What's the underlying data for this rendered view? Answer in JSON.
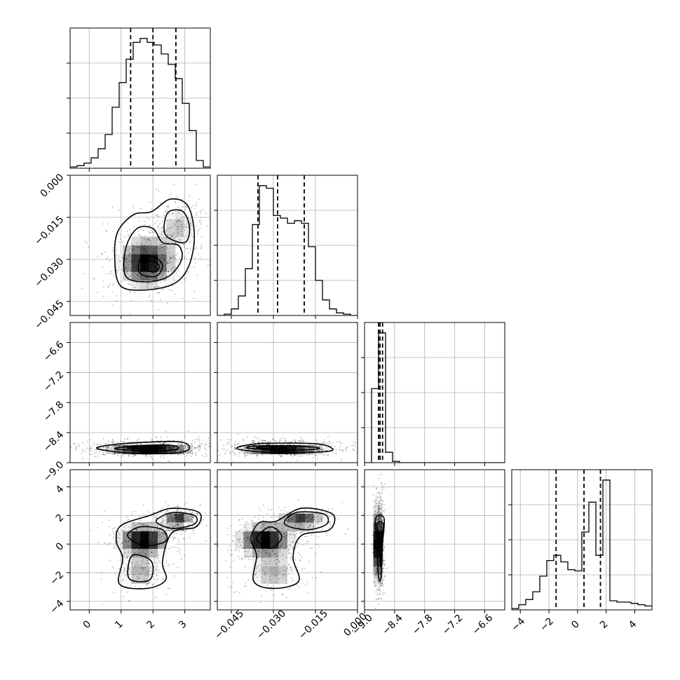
{
  "chart_data": {
    "type": "corner",
    "parameters": [
      {
        "key": "p1",
        "xlim": [
          -0.6,
          3.8
        ],
        "ticks": [
          0,
          1,
          2,
          3
        ],
        "tick_labels": [
          "0",
          "1",
          "2",
          "3"
        ],
        "quantiles": [
          1.3,
          2.0,
          2.72
        ]
      },
      {
        "key": "p2",
        "xlim": [
          -0.05,
          0.0
        ],
        "ticks": [
          -0.045,
          -0.03,
          -0.015,
          0.0
        ],
        "tick_labels": [
          "−0.045",
          "−0.030",
          "−0.015",
          "0.000"
        ],
        "quantiles": [
          -0.0355,
          -0.0285,
          -0.019
        ]
      },
      {
        "key": "p3",
        "xlim": [
          -9.0,
          -6.2
        ],
        "ticks": [
          -9.0,
          -8.4,
          -7.8,
          -7.2,
          -6.6
        ],
        "tick_labels": [
          "−9.0",
          "−8.4",
          "−7.8",
          "−7.2",
          "−6.6"
        ],
        "quantiles": [
          -8.72,
          -8.69,
          -8.64
        ]
      },
      {
        "key": "p4",
        "xlim": [
          -4.6,
          5.2
        ],
        "ticks": [
          -4,
          -2,
          0,
          2,
          4
        ],
        "tick_labels": [
          "−4",
          "−2",
          "0",
          "2",
          "4"
        ],
        "quantiles": [
          -1.5,
          0.45,
          1.6
        ]
      }
    ],
    "histograms": [
      {
        "param": "p1",
        "bins": [
          -0.6,
          -0.38,
          -0.16,
          0.06,
          0.28,
          0.5,
          0.72,
          0.94,
          1.16,
          1.38,
          1.6,
          1.82,
          2.04,
          2.26,
          2.48,
          2.7,
          2.92,
          3.14,
          3.36,
          3.58,
          3.8
        ],
        "counts": [
          1,
          2,
          4,
          8,
          15,
          26,
          47,
          66,
          84,
          97,
          100,
          97,
          95,
          88,
          80,
          69,
          50,
          29,
          6,
          1
        ]
      },
      {
        "param": "p2",
        "bins": [
          -0.05,
          -0.0475,
          -0.045,
          -0.0425,
          -0.04,
          -0.0375,
          -0.035,
          -0.0325,
          -0.03,
          -0.0275,
          -0.025,
          -0.0225,
          -0.02,
          -0.0175,
          -0.015,
          -0.0125,
          -0.01,
          -0.0075,
          -0.005,
          -0.0025,
          0.0
        ],
        "counts": [
          0,
          1,
          5,
          15,
          36,
          70,
          100,
          98,
          77,
          75,
          71,
          73,
          71,
          53,
          27,
          12,
          5,
          2,
          1,
          0
        ]
      },
      {
        "param": "p3",
        "bins": [
          -9.0,
          -8.86,
          -8.72,
          -8.58,
          -8.44,
          -8.3,
          -8.16,
          -8.02,
          -7.88,
          -7.74,
          -7.6,
          -7.46,
          -7.32,
          -7.18,
          -7.04,
          -6.9,
          -6.76,
          -6.62,
          -6.48,
          -6.34,
          -6.2
        ],
        "counts": [
          0,
          57,
          100,
          8,
          1,
          0,
          0,
          0,
          0,
          0,
          0,
          0,
          0,
          0,
          0,
          0,
          0,
          0,
          0,
          0
        ]
      },
      {
        "param": "p4",
        "bins": [
          -4.6,
          -4.11,
          -3.62,
          -3.13,
          -2.64,
          -2.15,
          -1.66,
          -1.17,
          -0.68,
          -0.19,
          0.3,
          0.79,
          1.28,
          1.77,
          2.26,
          2.75,
          3.24,
          3.73,
          4.22,
          4.71,
          5.2
        ],
        "counts": [
          1,
          4,
          8,
          14,
          26,
          38,
          42,
          37,
          31,
          30,
          60,
          83,
          42,
          100,
          7,
          6,
          6,
          5,
          4,
          3
        ]
      }
    ],
    "pairs": [
      {
        "x": "p1",
        "y": "p2",
        "modes": [
          {
            "x": 1.8,
            "y": -0.031,
            "sx": 0.55,
            "sy": 0.0055,
            "w": 0.72
          },
          {
            "x": 2.8,
            "y": -0.018,
            "sx": 0.4,
            "sy": 0.005,
            "w": 0.28
          }
        ],
        "contour_levels": [
          [
            {
              "x": 0.95,
              "y": -0.039
            },
            {
              "x": 1.6,
              "y": -0.041
            },
            {
              "x": 2.6,
              "y": -0.039
            },
            {
              "x": 3.1,
              "y": -0.033
            },
            {
              "x": 3.3,
              "y": -0.022
            },
            {
              "x": 3.1,
              "y": -0.011
            },
            {
              "x": 2.55,
              "y": -0.0085
            },
            {
              "x": 1.95,
              "y": -0.013
            },
            {
              "x": 1.4,
              "y": -0.014
            },
            {
              "x": 0.9,
              "y": -0.02
            },
            {
              "x": 0.8,
              "y": -0.029
            }
          ],
          [
            {
              "x": 1.15,
              "y": -0.036
            },
            {
              "x": 1.8,
              "y": -0.038
            },
            {
              "x": 2.5,
              "y": -0.036
            },
            {
              "x": 2.9,
              "y": -0.03
            },
            {
              "x": 2.8,
              "y": -0.025
            },
            {
              "x": 2.3,
              "y": -0.024
            },
            {
              "x": 2.0,
              "y": -0.019
            },
            {
              "x": 1.5,
              "y": -0.019
            },
            {
              "x": 1.15,
              "y": -0.026
            }
          ],
          [
            {
              "x": 2.45,
              "y": -0.022
            },
            {
              "x": 3.0,
              "y": -0.024
            },
            {
              "x": 3.15,
              "y": -0.019
            },
            {
              "x": 2.95,
              "y": -0.013
            },
            {
              "x": 2.5,
              "y": -0.013
            },
            {
              "x": 2.35,
              "y": -0.018
            }
          ],
          [
            {
              "x": 1.6,
              "y": -0.035
            },
            {
              "x": 2.1,
              "y": -0.036
            },
            {
              "x": 2.3,
              "y": -0.032
            },
            {
              "x": 2.0,
              "y": -0.029
            },
            {
              "x": 1.6,
              "y": -0.03
            }
          ],
          [
            {
              "x": 1.75,
              "y": -0.0335
            },
            {
              "x": 2.05,
              "y": -0.0345
            },
            {
              "x": 2.2,
              "y": -0.0325
            },
            {
              "x": 2.0,
              "y": -0.0305
            },
            {
              "x": 1.75,
              "y": -0.031
            }
          ]
        ]
      },
      {
        "x": "p1",
        "y": "p3",
        "modes": [
          {
            "x": 1.9,
            "y": -8.7,
            "sx": 0.85,
            "sy": 0.07,
            "w": 1.0
          }
        ],
        "contour_levels": [
          [
            {
              "x": 0.3,
              "y": -8.73
            },
            {
              "x": 1.5,
              "y": -8.82
            },
            {
              "x": 2.8,
              "y": -8.8
            },
            {
              "x": 3.15,
              "y": -8.7
            },
            {
              "x": 2.8,
              "y": -8.58
            },
            {
              "x": 1.5,
              "y": -8.6
            },
            {
              "x": 0.5,
              "y": -8.66
            }
          ],
          [
            {
              "x": 0.8,
              "y": -8.72
            },
            {
              "x": 1.8,
              "y": -8.77
            },
            {
              "x": 2.6,
              "y": -8.75
            },
            {
              "x": 2.8,
              "y": -8.7
            },
            {
              "x": 2.5,
              "y": -8.65
            },
            {
              "x": 1.6,
              "y": -8.66
            }
          ],
          [
            {
              "x": 1.2,
              "y": -8.71
            },
            {
              "x": 1.9,
              "y": -8.73
            },
            {
              "x": 2.3,
              "y": -8.7
            },
            {
              "x": 1.8,
              "y": -8.68
            }
          ]
        ]
      },
      {
        "x": "p2",
        "y": "p3",
        "modes": [
          {
            "x": -0.027,
            "y": -8.7,
            "sx": 0.009,
            "sy": 0.07,
            "w": 1.0
          }
        ],
        "contour_levels": [
          [
            {
              "x": -0.043,
              "y": -8.72
            },
            {
              "x": -0.03,
              "y": -8.8
            },
            {
              "x": -0.012,
              "y": -8.78
            },
            {
              "x": -0.009,
              "y": -8.72
            },
            {
              "x": -0.015,
              "y": -8.62
            },
            {
              "x": -0.035,
              "y": -8.62
            }
          ],
          [
            {
              "x": -0.039,
              "y": -8.71
            },
            {
              "x": -0.028,
              "y": -8.75
            },
            {
              "x": -0.017,
              "y": -8.74
            },
            {
              "x": -0.014,
              "y": -8.7
            },
            {
              "x": -0.025,
              "y": -8.66
            },
            {
              "x": -0.037,
              "y": -8.67
            }
          ],
          [
            {
              "x": -0.036,
              "y": -8.7
            },
            {
              "x": -0.032,
              "y": -8.72
            },
            {
              "x": -0.029,
              "y": -8.7
            },
            {
              "x": -0.033,
              "y": -8.68
            }
          ]
        ]
      },
      {
        "x": "p1",
        "y": "p4",
        "modes": [
          {
            "x": 1.7,
            "y": 0.3,
            "sx": 0.5,
            "sy": 0.7,
            "w": 0.45
          },
          {
            "x": 2.8,
            "y": 1.7,
            "sx": 0.3,
            "sy": 0.4,
            "w": 0.35
          },
          {
            "x": 1.6,
            "y": -2.0,
            "sx": 0.4,
            "sy": 0.8,
            "w": 0.2
          }
        ],
        "contour_levels": [
          [
            {
              "x": 0.95,
              "y": -2.8
            },
            {
              "x": 1.8,
              "y": -3.1
            },
            {
              "x": 2.4,
              "y": -2.5
            },
            {
              "x": 2.3,
              "y": -1.2
            },
            {
              "x": 2.6,
              "y": 0.8
            },
            {
              "x": 3.35,
              "y": 1.2
            },
            {
              "x": 3.45,
              "y": 2.2
            },
            {
              "x": 2.6,
              "y": 2.5
            },
            {
              "x": 1.9,
              "y": 2.0
            },
            {
              "x": 1.0,
              "y": 1.3
            },
            {
              "x": 0.85,
              "y": 0.2
            },
            {
              "x": 1.05,
              "y": -1.0
            }
          ],
          [
            {
              "x": 1.25,
              "y": -2.4
            },
            {
              "x": 1.9,
              "y": -2.5
            },
            {
              "x": 1.95,
              "y": -1.2
            },
            {
              "x": 1.35,
              "y": -0.8
            }
          ],
          [
            {
              "x": 1.2,
              "y": 0.6
            },
            {
              "x": 1.7,
              "y": -0.1
            },
            {
              "x": 2.4,
              "y": 0.2
            },
            {
              "x": 2.3,
              "y": 1.0
            },
            {
              "x": 1.6,
              "y": 1.2
            }
          ],
          [
            {
              "x": 2.1,
              "y": 1.6
            },
            {
              "x": 2.6,
              "y": 1.1
            },
            {
              "x": 3.3,
              "y": 1.4
            },
            {
              "x": 3.3,
              "y": 2.0
            },
            {
              "x": 2.6,
              "y": 2.2
            }
          ]
        ]
      },
      {
        "x": "p2",
        "y": "p4",
        "modes": [
          {
            "x": -0.033,
            "y": 0.3,
            "sx": 0.006,
            "sy": 0.7,
            "w": 0.45
          },
          {
            "x": -0.02,
            "y": 1.7,
            "sx": 0.005,
            "sy": 0.4,
            "w": 0.35
          },
          {
            "x": -0.03,
            "y": -2.0,
            "sx": 0.006,
            "sy": 0.8,
            "w": 0.2
          }
        ],
        "contour_levels": [
          [
            {
              "x": -0.038,
              "y": 0.4
            },
            {
              "x": -0.036,
              "y": -0.8
            },
            {
              "x": -0.037,
              "y": -2.6
            },
            {
              "x": -0.03,
              "y": -3.1
            },
            {
              "x": -0.021,
              "y": -2.6
            },
            {
              "x": -0.023,
              "y": -0.9
            },
            {
              "x": -0.02,
              "y": 0.6
            },
            {
              "x": -0.01,
              "y": 1.0
            },
            {
              "x": -0.009,
              "y": 2.1
            },
            {
              "x": -0.02,
              "y": 2.5
            },
            {
              "x": -0.029,
              "y": 1.6
            },
            {
              "x": -0.035,
              "y": 1.5
            }
          ],
          [
            {
              "x": -0.036,
              "y": 0.4
            },
            {
              "x": -0.031,
              "y": -0.3
            },
            {
              "x": -0.027,
              "y": 0.5
            },
            {
              "x": -0.031,
              "y": 1.2
            }
          ],
          [
            {
              "x": -0.026,
              "y": 1.4
            },
            {
              "x": -0.018,
              "y": 1.0
            },
            {
              "x": -0.011,
              "y": 1.4
            },
            {
              "x": -0.012,
              "y": 2.1
            },
            {
              "x": -0.022,
              "y": 2.2
            }
          ]
        ]
      },
      {
        "x": "p3",
        "y": "p4",
        "modes": [
          {
            "x": -8.7,
            "y": 0.0,
            "sx": 0.04,
            "sy": 1.6,
            "w": 1.0
          }
        ],
        "contour_levels": [
          [
            {
              "x": -8.78,
              "y": 1.8
            },
            {
              "x": -8.75,
              "y": 0.0
            },
            {
              "x": -8.72,
              "y": -2.3
            },
            {
              "x": -8.67,
              "y": -2.3
            },
            {
              "x": -8.64,
              "y": 0.0
            },
            {
              "x": -8.61,
              "y": 1.8
            }
          ],
          [
            {
              "x": -8.75,
              "y": 1.4
            },
            {
              "x": -8.71,
              "y": 0.0
            },
            {
              "x": -8.68,
              "y": -1.6
            },
            {
              "x": -8.66,
              "y": 0.0
            },
            {
              "x": -8.63,
              "y": 1.4
            }
          ],
          [
            {
              "x": -8.72,
              "y": 0.8
            },
            {
              "x": -8.69,
              "y": 0.1
            },
            {
              "x": -8.66,
              "y": 0.8
            }
          ]
        ]
      }
    ]
  }
}
